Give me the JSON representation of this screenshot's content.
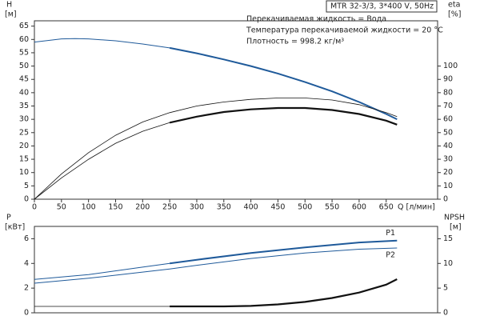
{
  "chart_data": [
    {
      "type": "line",
      "ylabel": "H",
      "yunit": "[м]",
      "y2label": "eta",
      "y2unit": "[%]",
      "xlabel": "Q [л/мин]",
      "info_box": "MTR 32-3/3, 3*400 V, 50Hz",
      "annotations": [
        "Перекачиваемая жидкость = Вода",
        "Температура перекачиваемой жидкости = 20 °C",
        "Плотность = 998.2 кг/м³"
      ],
      "xlim": [
        0,
        745
      ],
      "ylim": [
        0,
        67
      ],
      "y2lim": [
        0,
        134
      ],
      "xticks": [
        0,
        50,
        100,
        150,
        200,
        250,
        300,
        350,
        400,
        450,
        500,
        550,
        600,
        650
      ],
      "yticks": [
        0,
        5,
        10,
        15,
        20,
        25,
        30,
        35,
        40,
        45,
        50,
        55,
        60,
        65
      ],
      "y2ticks": [
        0,
        10,
        20,
        30,
        40,
        50,
        60,
        70,
        80,
        90,
        100
      ],
      "series": [
        {
          "color": "#1f5a9a",
          "width": 1,
          "x": [
            0,
            50,
            75,
            100,
            150,
            200,
            250
          ],
          "values": [
            59,
            60.2,
            60.3,
            60.2,
            59.5,
            58.3,
            56.8
          ]
        },
        {
          "color": "#1f5a9a",
          "width": 2,
          "x": [
            250,
            300,
            350,
            400,
            450,
            500,
            550,
            600,
            650,
            670
          ],
          "values": [
            56.8,
            54.8,
            52.5,
            50,
            47.2,
            44,
            40.5,
            36.5,
            32,
            30
          ]
        },
        {
          "color": "#111111",
          "width": 0.8,
          "axis": "y2",
          "x": [
            0,
            50,
            100,
            150,
            200,
            250,
            300,
            350,
            400,
            450,
            500,
            550,
            600,
            650,
            670
          ],
          "values": [
            0,
            19,
            35,
            48,
            58,
            65,
            70,
            73,
            75,
            76,
            76,
            74.5,
            71,
            65,
            62
          ]
        },
        {
          "color": "#111111",
          "width": 0.8,
          "axis": "y2",
          "x": [
            0,
            50,
            100,
            150,
            200,
            250
          ],
          "values": [
            0,
            16,
            30,
            42,
            51,
            57.5
          ]
        },
        {
          "color": "#111111",
          "width": 2.2,
          "axis": "y2",
          "x": [
            250,
            300,
            350,
            400,
            450,
            500,
            550,
            600,
            650,
            670
          ],
          "values": [
            57.5,
            62,
            65.5,
            67.5,
            68.5,
            68.5,
            67,
            64,
            59,
            56
          ]
        }
      ]
    },
    {
      "type": "line",
      "ylabel": "P",
      "yunit": "[кВт]",
      "y2label": "NPSH",
      "y2unit": "[м]",
      "xlim": [
        0,
        745
      ],
      "ylim": [
        0,
        7
      ],
      "y2lim": [
        0,
        17.5
      ],
      "yticks": [
        0,
        2,
        4,
        6
      ],
      "y2ticks": [
        0,
        5,
        10,
        15
      ],
      "series": [
        {
          "color": "#1f5a9a",
          "width": 1,
          "x": [
            0,
            100,
            200,
            250
          ],
          "values": [
            2.7,
            3.1,
            3.7,
            4.0
          ]
        },
        {
          "name": "P1",
          "color": "#1f5a9a",
          "width": 2,
          "x": [
            250,
            300,
            400,
            500,
            600,
            670
          ],
          "values": [
            4.0,
            4.3,
            4.85,
            5.3,
            5.7,
            5.85
          ]
        },
        {
          "name": "P2",
          "color": "#1f5a9a",
          "width": 1,
          "x": [
            0,
            100,
            200,
            250,
            300,
            400,
            500,
            600,
            670
          ],
          "values": [
            2.4,
            2.8,
            3.3,
            3.55,
            3.85,
            4.4,
            4.85,
            5.15,
            5.25
          ]
        },
        {
          "color": "#111111",
          "width": 0.8,
          "axis": "y2",
          "x": [
            0,
            250
          ],
          "values": [
            1.3,
            1.3
          ]
        },
        {
          "color": "#111111",
          "width": 2.2,
          "axis": "y2",
          "x": [
            250,
            350,
            400,
            450,
            500,
            550,
            600,
            650,
            670
          ],
          "values": [
            1.3,
            1.3,
            1.4,
            1.7,
            2.2,
            3.0,
            4.1,
            5.7,
            6.8
          ]
        }
      ]
    }
  ]
}
